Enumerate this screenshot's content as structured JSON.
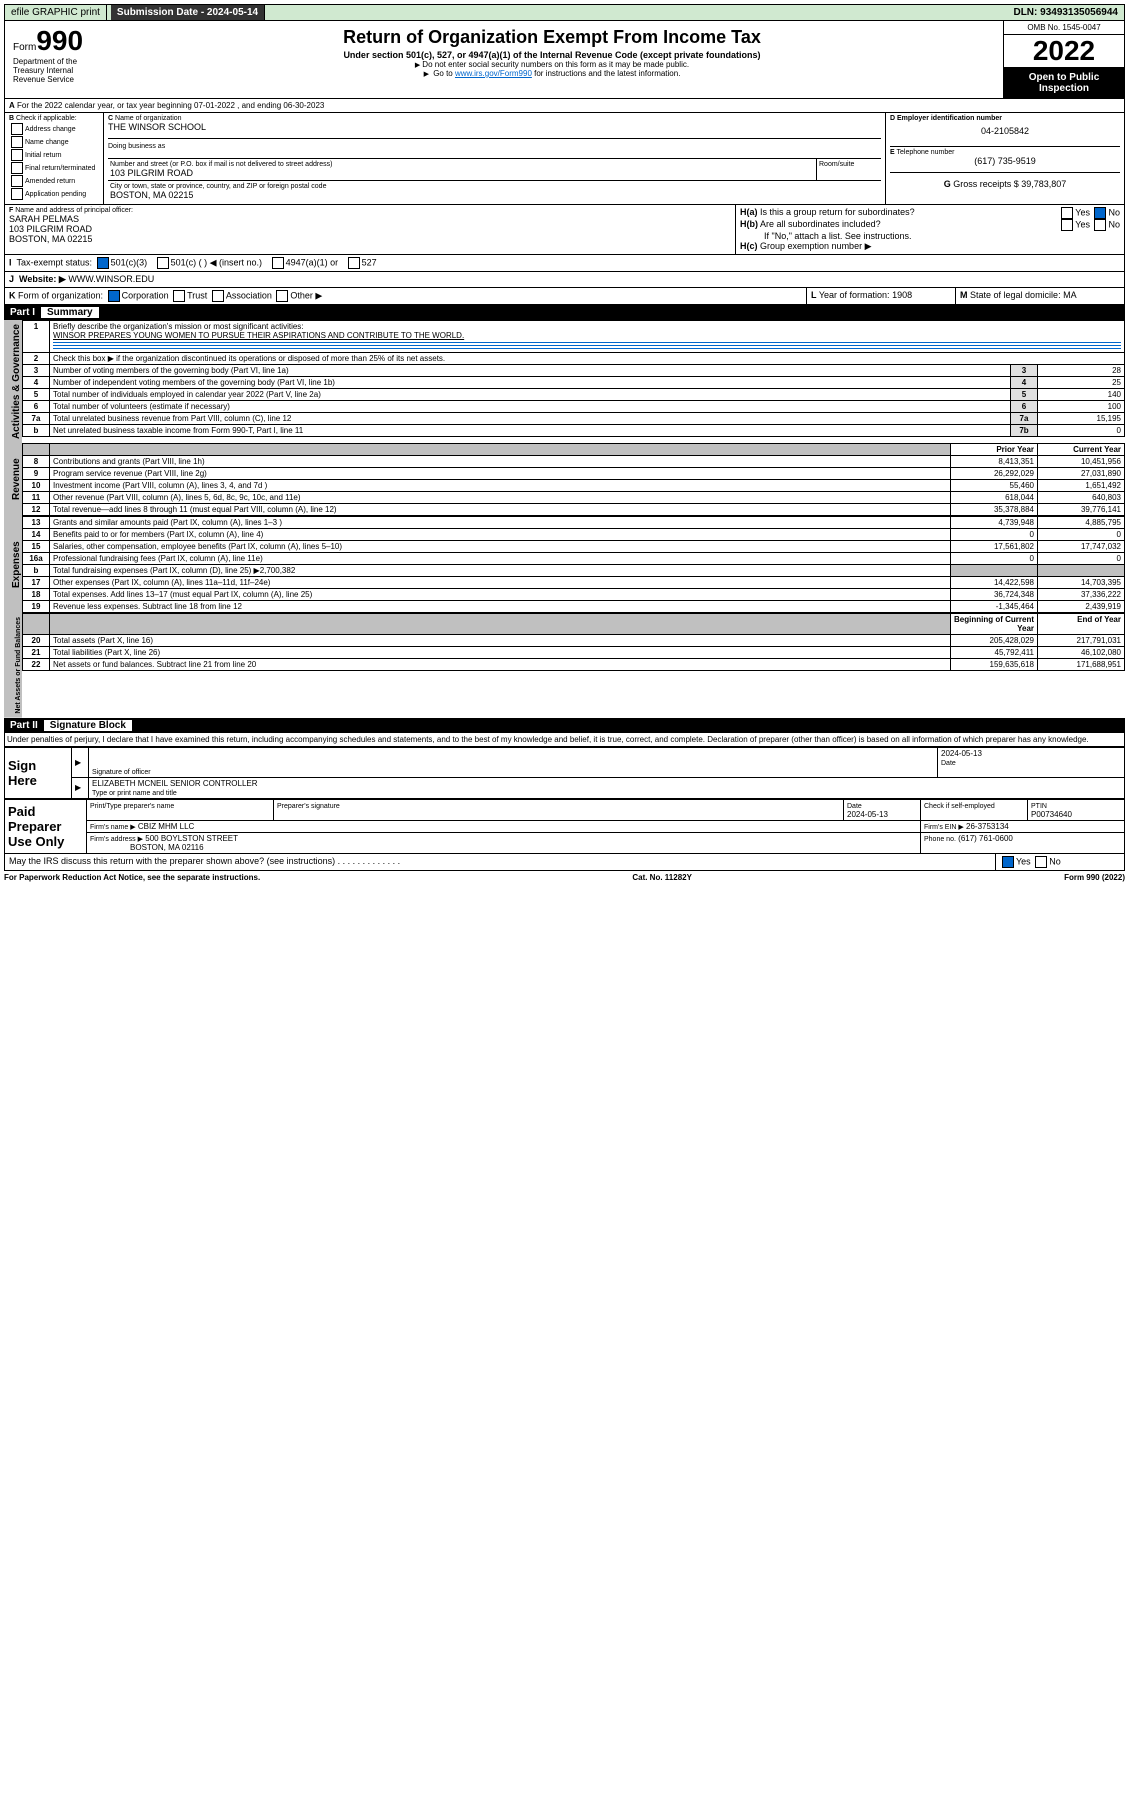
{
  "top": {
    "efile": "efile GRAPHIC print",
    "submission_label": "Submission Date - 2024-05-14",
    "dln": "DLN: 93493135056944"
  },
  "header": {
    "form": "Form",
    "form_no": "990",
    "title": "Return of Organization Exempt From Income Tax",
    "subtitle": "Under section 501(c), 527, or 4947(a)(1) of the Internal Revenue Code (except private foundations)",
    "note1": "Do not enter social security numbers on this form as it may be made public.",
    "note2_pre": "Go to ",
    "note2_link": "www.irs.gov/Form990",
    "note2_post": " for instructions and the latest information.",
    "omb": "OMB No. 1545-0047",
    "year": "2022",
    "inspection": "Open to Public Inspection",
    "dept": "Department of the Treasury Internal Revenue Service"
  },
  "A": {
    "text": "For the 2022 calendar year, or tax year beginning 07-01-2022    , and ending 06-30-2023"
  },
  "B": {
    "label": "Check if applicable:",
    "items": [
      "Address change",
      "Name change",
      "Initial return",
      "Final return/terminated",
      "Amended return",
      "Application pending"
    ]
  },
  "C": {
    "name_lbl": "Name of organization",
    "name": "THE WINSOR SCHOOL",
    "dba_lbl": "Doing business as",
    "addr_lbl": "Number and street (or P.O. box if mail is not delivered to street address)",
    "room_lbl": "Room/suite",
    "addr": "103 PILGRIM ROAD",
    "city_lbl": "City or town, state or province, country, and ZIP or foreign postal code",
    "city": "BOSTON, MA  02215"
  },
  "D": {
    "lbl": "Employer identification number",
    "val": "04-2105842"
  },
  "E": {
    "lbl": "Telephone number",
    "val": "(617) 735-9519"
  },
  "G": {
    "lbl": "Gross receipts $",
    "val": "39,783,807"
  },
  "F": {
    "lbl": "Name and address of principal officer:",
    "name": "SARAH PELMAS",
    "addr": "103 PILGRIM ROAD",
    "city": "BOSTON, MA  02215"
  },
  "H": {
    "a": "Is this a group return for subordinates?",
    "b": "Are all subordinates included?",
    "b_note": "If \"No,\" attach a list. See instructions.",
    "c": "Group exemption number ▶",
    "yes": "Yes",
    "no": "No"
  },
  "I": {
    "lbl": "Tax-exempt status:",
    "opts": [
      "501(c)(3)",
      "501(c) (   ) ◀ (insert no.)",
      "4947(a)(1) or",
      "527"
    ]
  },
  "J": {
    "lbl": "Website: ▶",
    "val": "WWW.WINSOR.EDU"
  },
  "K": {
    "lbl": "Form of organization:",
    "opts": [
      "Corporation",
      "Trust",
      "Association",
      "Other ▶"
    ]
  },
  "L": {
    "lbl": "Year of formation:",
    "val": "1908"
  },
  "M": {
    "lbl": "State of legal domicile:",
    "val": "MA"
  },
  "part1": {
    "title": "Part I",
    "sub": "Summary"
  },
  "summary": {
    "line1_lbl": "Briefly describe the organization's mission or most significant activities:",
    "line1_val": "WINSOR PREPARES YOUNG WOMEN TO PURSUE THEIR ASPIRATIONS AND CONTRIBUTE TO THE WORLD.",
    "line2": "Check this box ▶            if the organization discontinued its operations or disposed of more than 25% of its net assets.",
    "rows_gov": [
      {
        "n": "3",
        "d": "Number of voting members of the governing body (Part VI, line 1a)",
        "r": "3",
        "v": "28"
      },
      {
        "n": "4",
        "d": "Number of independent voting members of the governing body (Part VI, line 1b)",
        "r": "4",
        "v": "25"
      },
      {
        "n": "5",
        "d": "Total number of individuals employed in calendar year 2022 (Part V, line 2a)",
        "r": "5",
        "v": "140"
      },
      {
        "n": "6",
        "d": "Total number of volunteers (estimate if necessary)",
        "r": "6",
        "v": "100"
      },
      {
        "n": "7a",
        "d": "Total unrelated business revenue from Part VIII, column (C), line 12",
        "r": "7a",
        "v": "15,195"
      },
      {
        "n": "b",
        "d": "Net unrelated business taxable income from Form 990-T, Part I, line 11",
        "r": "7b",
        "v": "0"
      }
    ],
    "hdr_prior": "Prior Year",
    "hdr_curr": "Current Year",
    "rows_rev": [
      {
        "n": "8",
        "d": "Contributions and grants (Part VIII, line 1h)",
        "p": "8,413,351",
        "c": "10,451,956"
      },
      {
        "n": "9",
        "d": "Program service revenue (Part VIII, line 2g)",
        "p": "26,292,029",
        "c": "27,031,890"
      },
      {
        "n": "10",
        "d": "Investment income (Part VIII, column (A), lines 3, 4, and 7d )",
        "p": "55,460",
        "c": "1,651,492"
      },
      {
        "n": "11",
        "d": "Other revenue (Part VIII, column (A), lines 5, 6d, 8c, 9c, 10c, and 11e)",
        "p": "618,044",
        "c": "640,803"
      },
      {
        "n": "12",
        "d": "Total revenue—add lines 8 through 11 (must equal Part VIII, column (A), line 12)",
        "p": "35,378,884",
        "c": "39,776,141"
      }
    ],
    "rows_exp": [
      {
        "n": "13",
        "d": "Grants and similar amounts paid (Part IX, column (A), lines 1–3 )",
        "p": "4,739,948",
        "c": "4,885,795"
      },
      {
        "n": "14",
        "d": "Benefits paid to or for members (Part IX, column (A), line 4)",
        "p": "0",
        "c": "0"
      },
      {
        "n": "15",
        "d": "Salaries, other compensation, employee benefits (Part IX, column (A), lines 5–10)",
        "p": "17,561,802",
        "c": "17,747,032"
      },
      {
        "n": "16a",
        "d": "Professional fundraising fees (Part IX, column (A), line 11e)",
        "p": "0",
        "c": "0"
      },
      {
        "n": "b",
        "d": "Total fundraising expenses (Part IX, column (D), line 25) ▶2,700,382",
        "p": "",
        "c": "",
        "gray": true
      },
      {
        "n": "17",
        "d": "Other expenses (Part IX, column (A), lines 11a–11d, 11f–24e)",
        "p": "14,422,598",
        "c": "14,703,395"
      },
      {
        "n": "18",
        "d": "Total expenses. Add lines 13–17 (must equal Part IX, column (A), line 25)",
        "p": "36,724,348",
        "c": "37,336,222"
      },
      {
        "n": "19",
        "d": "Revenue less expenses. Subtract line 18 from line 12",
        "p": "-1,345,464",
        "c": "2,439,919"
      }
    ],
    "hdr_beg": "Beginning of Current Year",
    "hdr_end": "End of Year",
    "rows_net": [
      {
        "n": "20",
        "d": "Total assets (Part X, line 16)",
        "p": "205,428,029",
        "c": "217,791,031"
      },
      {
        "n": "21",
        "d": "Total liabilities (Part X, line 26)",
        "p": "45,792,411",
        "c": "46,102,080"
      },
      {
        "n": "22",
        "d": "Net assets or fund balances. Subtract line 21 from line 20",
        "p": "159,635,618",
        "c": "171,688,951"
      }
    ]
  },
  "side_labels": {
    "gov": "Activities & Governance",
    "rev": "Revenue",
    "exp": "Expenses",
    "net": "Net Assets or Fund Balances"
  },
  "part2": {
    "title": "Part II",
    "sub": "Signature Block"
  },
  "sig": {
    "penalty": "Under penalties of perjury, I declare that I have examined this return, including accompanying schedules and statements, and to the best of my knowledge and belief, it is true, correct, and complete. Declaration of preparer (other than officer) is based on all information of which preparer has any knowledge.",
    "sign_here": "Sign Here",
    "sig_officer": "Signature of officer",
    "date_lbl": "Date",
    "date_v": "2024-05-13",
    "name": "ELIZABETH MCNEIL  SENIOR CONTROLLER",
    "name_lbl": "Type or print name and title",
    "paid": "Paid Preparer Use Only",
    "prep_name_lbl": "Print/Type preparer's name",
    "prep_sig_lbl": "Preparer's signature",
    "prep_date_lbl": "Date",
    "prep_date": "2024-05-13",
    "self_lbl": "Check            if self-employed",
    "ptin_lbl": "PTIN",
    "ptin": "P00734640",
    "firm_name_lbl": "Firm's name      ▶",
    "firm_name": "CBIZ MHM LLC",
    "firm_ein_lbl": "Firm's EIN ▶",
    "firm_ein": "26-3753134",
    "firm_addr_lbl": "Firm's address ▶",
    "firm_addr": "500 BOYLSTON STREET",
    "firm_city": "BOSTON, MA  02116",
    "phone_lbl": "Phone no.",
    "phone": "(617) 761-0600",
    "discuss": "May the IRS discuss this return with the preparer shown above? (see instructions)"
  },
  "footer": {
    "pra": "For Paperwork Reduction Act Notice, see the separate instructions.",
    "cat": "Cat. No. 11282Y",
    "form": "Form 990 (2022)"
  }
}
